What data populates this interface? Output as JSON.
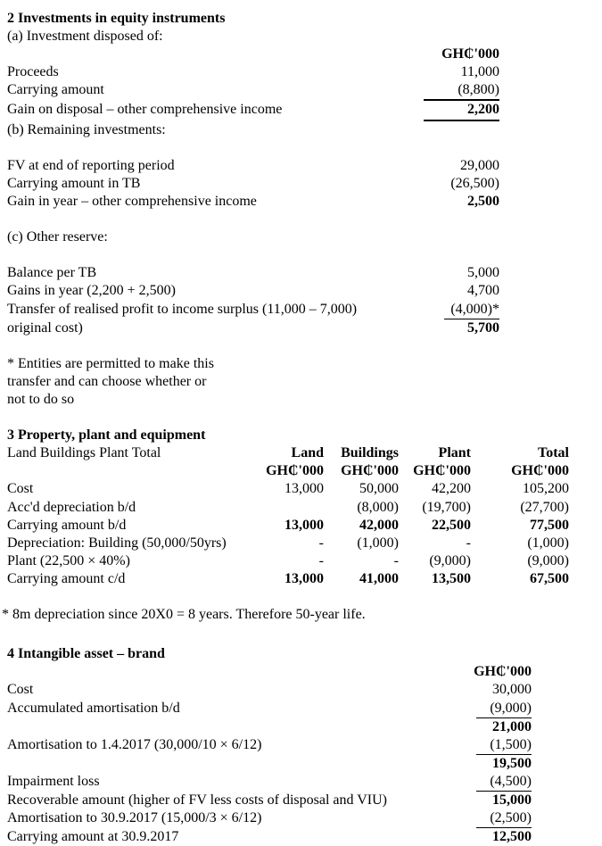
{
  "doc": {
    "investments": {
      "heading": "2 Investments in equity instruments",
      "disposal": {
        "label": "(a) Investment disposed of:",
        "unit": "GH₵'000",
        "rows": [
          {
            "label": "Proceeds",
            "value": "11,000"
          },
          {
            "label": "Carrying amount",
            "value": "(8,800)"
          },
          {
            "label": "Gain on disposal – other comprehensive income",
            "value": "2,200"
          }
        ]
      },
      "remaining": {
        "label": "(b) Remaining investments:",
        "rows": [
          {
            "label": "FV at end of reporting period",
            "value": "29,000"
          },
          {
            "label": "Carrying amount in TB",
            "value": "(26,500)"
          },
          {
            "label": "Gain in year – other comprehensive income",
            "value": "2,500"
          }
        ]
      },
      "other_reserve": {
        "label": "(c) Other reserve:",
        "rows": [
          {
            "label": "Balance per TB",
            "value": "5,000"
          },
          {
            "label": "Gains in year (2,200 + 2,500)",
            "value": "4,700"
          },
          {
            "label": "Transfer of realised profit to income surplus (11,000 – 7,000)",
            "value": "(4,000)*"
          },
          {
            "label": "original cost)",
            "value": "5,700"
          }
        ]
      },
      "footnote_lines": [
        "* Entities are permitted to make this",
        "transfer and can choose whether or",
        "not to do so"
      ]
    },
    "ppe": {
      "heading": "3 Property, plant and equipment",
      "row_caption": "Land Buildings Plant Total",
      "columns": [
        "Land",
        "Buildings",
        "Plant",
        "Total"
      ],
      "units": [
        "GH₵'000",
        "GH₵'000",
        "GH₵'000",
        "GH₵'000"
      ],
      "rows": [
        {
          "label": "Cost",
          "values": [
            "13,000",
            "50,000",
            "42,200",
            "105,200"
          ]
        },
        {
          "label": "Acc'd depreciation b/d",
          "values": [
            "",
            "(8,000)",
            "(19,700)",
            "(27,700)"
          ]
        },
        {
          "label": "Carrying amount b/d",
          "values": [
            "13,000",
            "42,000",
            "22,500",
            "77,500"
          ]
        },
        {
          "label": "Depreciation: Building (50,000/50yrs)",
          "values": [
            "-",
            "(1,000)",
            "-",
            "(1,000)"
          ]
        },
        {
          "label": "Plant (22,500 × 40%)",
          "values": [
            "-",
            "-",
            "(9,000)",
            "(9,000)"
          ]
        },
        {
          "label": "Carrying amount c/d",
          "values": [
            "13,000",
            "41,000",
            "13,500",
            "67,500"
          ]
        }
      ],
      "footnote": "* 8m depreciation since 20X0 = 8 years. Therefore 50-year life."
    },
    "intangible": {
      "heading": "4 Intangible asset – brand",
      "unit": "GH₵'000",
      "rows": [
        {
          "label": "Cost",
          "value": "30,000"
        },
        {
          "label": "Accumulated amortisation b/d",
          "value": "(9,000)"
        },
        {
          "label": "",
          "value": "21,000"
        },
        {
          "label": "Amortisation to 1.4.2017 (30,000/10 × 6/12)",
          "value": "(1,500)"
        },
        {
          "label": "",
          "value": "19,500"
        },
        {
          "label": "Impairment loss",
          "value": "(4,500)"
        },
        {
          "label": "Recoverable amount (higher of FV less costs of disposal and VIU)",
          "value": "15,000"
        },
        {
          "label": "Amortisation to 30.9.2017 (15,000/3 × 6/12)",
          "value": "(2,500)"
        },
        {
          "label": "Carrying amount at 30.9.2017",
          "value": "12,500"
        }
      ]
    }
  }
}
